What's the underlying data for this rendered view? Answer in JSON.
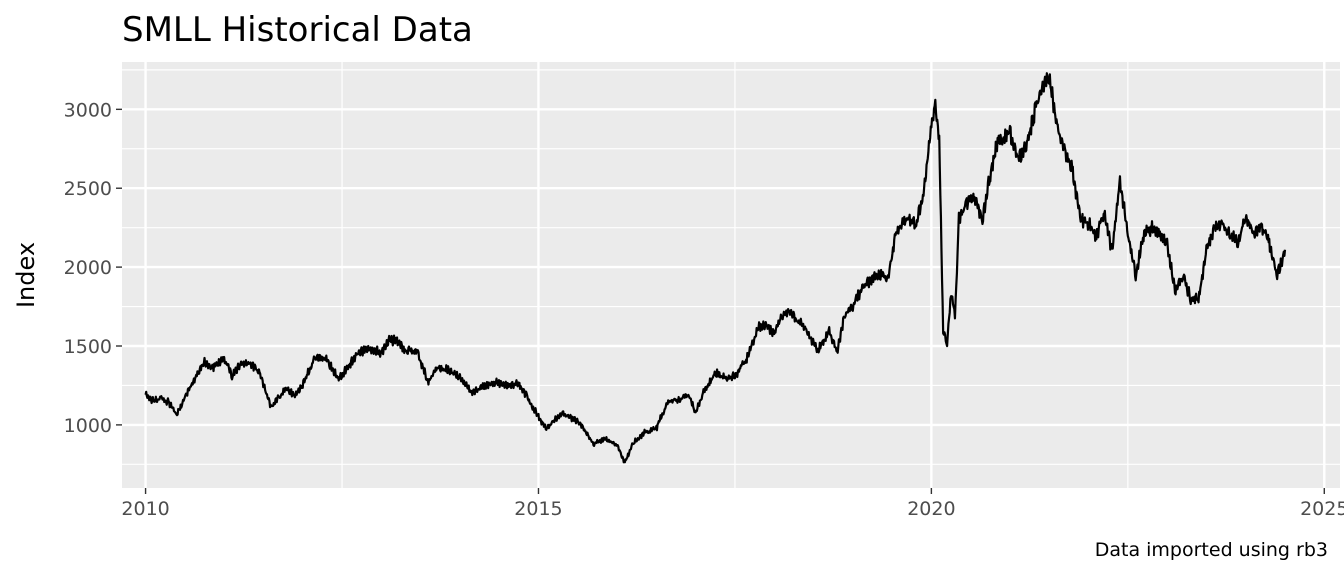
{
  "chart_data": {
    "type": "line",
    "title": "SMLL Historical Data",
    "ylabel": "Index",
    "xlabel": "",
    "caption": "Data imported using rb3",
    "x_ticks": [
      "2010",
      "2015",
      "2020",
      "2025"
    ],
    "y_ticks": [
      "1000",
      "1500",
      "2000",
      "2500",
      "3000"
    ],
    "xlim": [
      2009.7,
      2025.2
    ],
    "ylim": [
      600,
      3300
    ],
    "grid": true,
    "series": [
      {
        "color": "#000000",
        "x": [
          2010.0,
          2010.1,
          2010.2,
          2010.3,
          2010.4,
          2010.5,
          2010.6,
          2010.75,
          2010.85,
          2011.0,
          2011.1,
          2011.2,
          2011.3,
          2011.45,
          2011.6,
          2011.7,
          2011.8,
          2011.9,
          2012.0,
          2012.15,
          2012.3,
          2012.45,
          2012.6,
          2012.7,
          2012.85,
          2013.0,
          2013.1,
          2013.2,
          2013.3,
          2013.45,
          2013.6,
          2013.7,
          2013.85,
          2014.0,
          2014.15,
          2014.3,
          2014.45,
          2014.6,
          2014.75,
          2014.85,
          2015.0,
          2015.1,
          2015.2,
          2015.3,
          2015.4,
          2015.5,
          2015.6,
          2015.7,
          2015.85,
          2016.0,
          2016.1,
          2016.2,
          2016.35,
          2016.5,
          2016.65,
          2016.8,
          2016.9,
          2017.0,
          2017.1,
          2017.25,
          2017.4,
          2017.5,
          2017.65,
          2017.8,
          2017.9,
          2018.0,
          2018.1,
          2018.2,
          2018.3,
          2018.4,
          2018.55,
          2018.7,
          2018.8,
          2018.9,
          2019.0,
          2019.15,
          2019.3,
          2019.45,
          2019.55,
          2019.7,
          2019.8,
          2019.9,
          2020.0,
          2020.05,
          2020.1,
          2020.15,
          2020.2,
          2020.25,
          2020.3,
          2020.35,
          2020.45,
          2020.55,
          2020.65,
          2020.75,
          2020.85,
          2021.0,
          2021.1,
          2021.2,
          2021.3,
          2021.4,
          2021.5,
          2021.6,
          2021.7,
          2021.8,
          2021.9,
          2022.0,
          2022.1,
          2022.2,
          2022.3,
          2022.4,
          2022.5,
          2022.6,
          2022.7,
          2022.8,
          2022.9,
          2023.0,
          2023.1,
          2023.2,
          2023.3,
          2023.4,
          2023.5,
          2023.6,
          2023.7,
          2023.8,
          2023.9,
          2024.0,
          2024.1,
          2024.2,
          2024.3,
          2024.4,
          2024.5
        ],
        "y": [
          1190,
          1150,
          1170,
          1140,
          1060,
          1180,
          1270,
          1400,
          1360,
          1420,
          1310,
          1380,
          1400,
          1330,
          1110,
          1180,
          1230,
          1190,
          1250,
          1430,
          1420,
          1290,
          1380,
          1460,
          1480,
          1460,
          1540,
          1530,
          1470,
          1470,
          1270,
          1360,
          1350,
          1300,
          1200,
          1250,
          1270,
          1250,
          1260,
          1180,
          1050,
          980,
          1030,
          1070,
          1050,
          1020,
          960,
          880,
          910,
          870,
          760,
          880,
          950,
          980,
          1150,
          1160,
          1200,
          1080,
          1200,
          1330,
          1290,
          1310,
          1420,
          1620,
          1630,
          1580,
          1700,
          1720,
          1660,
          1610,
          1470,
          1590,
          1470,
          1700,
          1760,
          1880,
          1950,
          1930,
          2220,
          2310,
          2270,
          2450,
          2900,
          3020,
          2800,
          1600,
          1500,
          1850,
          1680,
          2300,
          2400,
          2450,
          2300,
          2600,
          2800,
          2850,
          2700,
          2750,
          2950,
          3150,
          3200,
          2900,
          2750,
          2600,
          2300,
          2280,
          2200,
          2350,
          2100,
          2550,
          2200,
          1950,
          2200,
          2250,
          2200,
          2150,
          1850,
          1950,
          1800,
          1800,
          2100,
          2250,
          2280,
          2200,
          2160,
          2320,
          2210,
          2260,
          2150,
          1950,
          2110
        ]
      }
    ]
  }
}
